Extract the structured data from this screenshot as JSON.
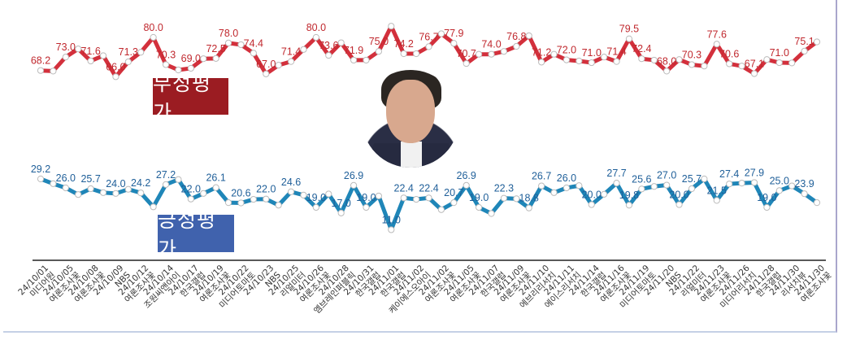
{
  "colors": {
    "negative_line": "#d3303c",
    "negative_text": "#c0282e",
    "positive_line": "#1f86b8",
    "positive_text": "#1f5f99",
    "negative_legend": "#9b1c22",
    "positive_legend": "#4062ad"
  },
  "chart_data": {
    "type": "line",
    "title": "",
    "legend": [
      "부정평가",
      "긍정평가"
    ],
    "series": [
      {
        "name": "부정평가",
        "values": [
          68.2,
          68.0,
          73.0,
          75.9,
          71.6,
          73.5,
          66.0,
          71.3,
          74.7,
          80.0,
          70.3,
          68.4,
          69.0,
          72.4,
          72.5,
          78.0,
          77.4,
          74.4,
          67.0,
          70.1,
          71.4,
          75.7,
          80.0,
          73.6,
          78.1,
          71.9,
          71.9,
          75.0,
          84.0,
          74.2,
          74.2,
          76.7,
          81.3,
          77.9,
          70.7,
          74.0,
          74.0,
          75.0,
          76.8,
          80.6,
          71.2,
          74.0,
          72.0,
          71.6,
          71.0,
          73.0,
          71.4,
          79.5,
          72.4,
          71.9,
          68.0,
          72.1,
          70.3,
          69.8,
          77.6,
          70.6,
          69.8,
          67.1,
          72.1,
          71.0,
          70.9,
          75.1,
          78.4
        ],
        "labels": [
          "68.2",
          "",
          "73.0",
          "",
          "71.6",
          "",
          "66.0",
          "71.3",
          "",
          "80.0",
          "70.3",
          "",
          "69.0",
          "",
          "72.5",
          "78.0",
          "",
          "74.4",
          "67.0",
          "",
          "71.4",
          "",
          "80.0",
          "73.6",
          "",
          "71.9",
          "",
          "75.0",
          "",
          "74.2",
          "",
          "76.7",
          "",
          "77.9",
          "70.7",
          "",
          "74.0",
          "",
          "76.8",
          "",
          "71.2",
          "",
          "72.0",
          "",
          "71.0",
          "",
          "71.4",
          "79.5",
          "72.4",
          "",
          "68.0",
          "",
          "70.3",
          "",
          "77.6",
          "70.6",
          "",
          "67.1",
          "",
          "71.0",
          "",
          "75.1",
          ""
        ]
      },
      {
        "name": "긍정평가",
        "values": [
          29.2,
          27.5,
          26.0,
          23.6,
          25.7,
          24.3,
          24.0,
          25.5,
          24.2,
          19.2,
          27.2,
          29.0,
          22.0,
          24.0,
          26.1,
          20.7,
          20.6,
          21.9,
          22.0,
          19.8,
          24.6,
          23.4,
          19.0,
          23.8,
          17.0,
          26.9,
          19.0,
          23.1,
          11.0,
          22.4,
          21.9,
          22.4,
          18.2,
          20.7,
          26.9,
          19.0,
          16.8,
          22.3,
          22.1,
          18.8,
          26.7,
          24.3,
          26.0,
          26.8,
          20.0,
          23.7,
          27.7,
          19.8,
          25.6,
          26.5,
          27.0,
          20.0,
          25.7,
          29.2,
          21.5,
          27.4,
          27.7,
          27.9,
          19.0,
          25.0,
          26.7,
          23.9,
          20.7
        ],
        "labels": [
          "29.2",
          "",
          "26.0",
          "",
          "25.7",
          "",
          "24.0",
          "",
          "24.2",
          "",
          "27.2",
          "",
          "22.0",
          "",
          "26.1",
          "",
          "20.6",
          "",
          "22.0",
          "",
          "24.6",
          "",
          "19.0",
          "",
          "17.0",
          "26.9",
          "19.0",
          "",
          "11.0",
          "22.4",
          "",
          "22.4",
          "",
          "20.7",
          "26.9",
          "19.0",
          "",
          "22.3",
          "",
          "18.8",
          "26.7",
          "",
          "26.0",
          "",
          "20.0",
          "",
          "27.7",
          "19.8",
          "25.6",
          "",
          "27.0",
          "20.0",
          "25.7",
          "",
          "21.5",
          "27.4",
          "",
          "27.9",
          "19.0",
          "25.0",
          "",
          "23.9",
          ""
        ]
      }
    ],
    "x_labels": [
      {
        "date": "24/10/01",
        "pollster": "미디어원"
      },
      {
        "date": "24/10/05",
        "pollster": "여론조사꽃"
      },
      {
        "date": "24/10/08",
        "pollster": "여론조사꽃"
      },
      {
        "date": "24/10/09",
        "pollster": "NBS"
      },
      {
        "date": "24/10/12",
        "pollster": "여론조사꽃"
      },
      {
        "date": "24/10/14",
        "pollster": "조원씨앤아이"
      },
      {
        "date": "24/10/17",
        "pollster": "한국갤럽"
      },
      {
        "date": "24/10/19",
        "pollster": "여론조사꽃"
      },
      {
        "date": "24/10/22",
        "pollster": "미디어토마토"
      },
      {
        "date": "24/10/23",
        "pollster": "NBS"
      },
      {
        "date": "24/10/25",
        "pollster": "리얼미터"
      },
      {
        "date": "24/10/26",
        "pollster": "여론조사꽃"
      },
      {
        "date": "24/10/28",
        "pollster": "엠브레인퍼블릭"
      },
      {
        "date": "24/10/31",
        "pollster": "한국갤럽"
      },
      {
        "date": "24/11/01",
        "pollster": "한국갤럽"
      },
      {
        "date": "24/11/02",
        "pollster": "케이에스오아이"
      },
      {
        "date": "24/11/02",
        "pollster": "여론조사꽃"
      },
      {
        "date": "24/11/05",
        "pollster": "여론조사꽃"
      },
      {
        "date": "24/11/07",
        "pollster": "한국갤럽"
      },
      {
        "date": "24/11/09",
        "pollster": "여론조사꽃"
      },
      {
        "date": "24/11/10",
        "pollster": "에브리리서치"
      },
      {
        "date": "24/11/11",
        "pollster": "에이스리서치"
      },
      {
        "date": "24/11/14",
        "pollster": "한국갤럽"
      },
      {
        "date": "24/11/16",
        "pollster": "여론조사꽃"
      },
      {
        "date": "24/11/19",
        "pollster": "미디어토마토"
      },
      {
        "date": "24/11/20",
        "pollster": "NBS"
      },
      {
        "date": "24/11/22",
        "pollster": "리얼미터"
      },
      {
        "date": "24/11/23",
        "pollster": "여론조사꽃"
      },
      {
        "date": "24/11/26",
        "pollster": "미디어리서치"
      },
      {
        "date": "24/11/28",
        "pollster": "한국갤럽"
      },
      {
        "date": "24/11/30",
        "pollster": "리서치뷰"
      },
      {
        "date": "24/11/30",
        "pollster": "여론조사꽃"
      }
    ]
  },
  "legend": {
    "negative": "부정평가",
    "positive": "긍정평가"
  }
}
